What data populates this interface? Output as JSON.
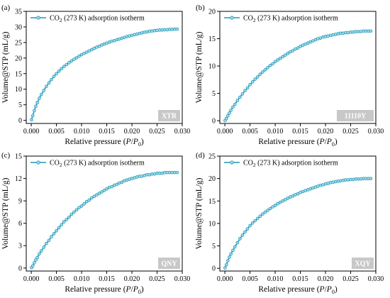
{
  "figure": {
    "series_color": "#1e98b8",
    "marker_fill": "#a9dcea"
  },
  "chart_data": [
    {
      "type": "line",
      "panel_label": "(a)",
      "sample_badge": "XTR",
      "series": [
        {
          "name_main": "CO",
          "name_sub": "2",
          "name_rest": " (273 K) adsorption isotherm",
          "x": [
            5e-05,
            0.0003,
            0.0006,
            0.0009,
            0.0012,
            0.0016,
            0.002,
            0.0025,
            0.003,
            0.0035,
            0.004,
            0.0045,
            0.005,
            0.0055,
            0.006,
            0.0065,
            0.007,
            0.0075,
            0.008,
            0.0085,
            0.009,
            0.0095,
            0.01,
            0.0105,
            0.011,
            0.0115,
            0.012,
            0.0125,
            0.013,
            0.0135,
            0.014,
            0.0145,
            0.015,
            0.0155,
            0.016,
            0.0165,
            0.017,
            0.0175,
            0.018,
            0.0185,
            0.019,
            0.0195,
            0.02,
            0.0205,
            0.021,
            0.0215,
            0.022,
            0.0225,
            0.023,
            0.0235,
            0.024,
            0.0245,
            0.025,
            0.0255,
            0.026,
            0.0265,
            0.027,
            0.0275,
            0.028,
            0.0285,
            0.029
          ],
          "y": [
            0.2,
            1.5,
            3.1,
            4.5,
            5.7,
            7.1,
            8.3,
            9.6,
            10.9,
            12.0,
            13.1,
            14.1,
            15.0,
            15.8,
            16.6,
            17.3,
            17.9,
            18.5,
            19.1,
            19.6,
            20.1,
            20.6,
            21.1,
            21.5,
            21.9,
            22.3,
            22.7,
            23.1,
            23.5,
            23.8,
            24.2,
            24.5,
            24.8,
            25.1,
            25.4,
            25.6,
            25.9,
            26.1,
            26.4,
            26.6,
            26.9,
            27.1,
            27.3,
            27.5,
            27.7,
            27.9,
            28.1,
            28.3,
            28.4,
            28.6,
            28.7,
            28.8,
            28.9,
            29.0,
            29.0,
            29.1,
            29.1,
            29.2,
            29.2,
            29.3,
            29.3
          ]
        }
      ],
      "xlim": [
        -0.001,
        0.03
      ],
      "ylim": [
        -1,
        35
      ],
      "xticks": [
        0.0,
        0.005,
        0.01,
        0.015,
        0.02,
        0.025,
        0.03
      ],
      "xtick_labels": [
        "0.000",
        "0.005",
        "0.010",
        "0.015",
        "0.020",
        "0.025",
        "0.030"
      ],
      "yticks": [
        0,
        5,
        10,
        15,
        20,
        25,
        30,
        35
      ],
      "ytick_labels": [
        "0",
        "5",
        "10",
        "15",
        "20",
        "25",
        "30",
        "35"
      ],
      "ylabel": "Volume@STP (mL/g)",
      "xlabel_main": "Relative pressure (",
      "xlabel_var": "P",
      "xlabel_slash": "/",
      "xlabel_var2": "P",
      "xlabel_sub": "0",
      "xlabel_end": ")",
      "legend": "top-left"
    },
    {
      "type": "line",
      "panel_label": "(b)",
      "sample_badge": "11110Y",
      "series": [
        {
          "name_main": "CO",
          "name_sub": "2",
          "name_rest": " (273 K) adsorption isotherm",
          "x": [
            5e-05,
            0.0003,
            0.0006,
            0.0009,
            0.0012,
            0.0016,
            0.002,
            0.0025,
            0.003,
            0.0035,
            0.004,
            0.0045,
            0.005,
            0.0055,
            0.006,
            0.0065,
            0.007,
            0.0075,
            0.008,
            0.0085,
            0.009,
            0.0095,
            0.01,
            0.0105,
            0.011,
            0.0115,
            0.012,
            0.0125,
            0.013,
            0.0135,
            0.014,
            0.0145,
            0.015,
            0.0155,
            0.016,
            0.0165,
            0.017,
            0.0175,
            0.018,
            0.0185,
            0.019,
            0.0195,
            0.02,
            0.0205,
            0.021,
            0.0215,
            0.022,
            0.0225,
            0.023,
            0.0235,
            0.024,
            0.0245,
            0.025,
            0.0255,
            0.026,
            0.0265,
            0.027,
            0.0275,
            0.028,
            0.0285,
            0.029
          ],
          "y": [
            0.05,
            0.4,
            0.9,
            1.4,
            1.9,
            2.5,
            3.0,
            3.7,
            4.3,
            4.9,
            5.5,
            6.0,
            6.6,
            7.1,
            7.6,
            8.0,
            8.5,
            8.9,
            9.3,
            9.7,
            10.1,
            10.4,
            10.8,
            11.1,
            11.4,
            11.7,
            12.0,
            12.3,
            12.6,
            12.8,
            13.1,
            13.3,
            13.6,
            13.8,
            14.0,
            14.2,
            14.4,
            14.6,
            14.8,
            15.0,
            15.1,
            15.3,
            15.4,
            15.5,
            15.6,
            15.7,
            15.8,
            15.9,
            16.0,
            16.0,
            16.1,
            16.1,
            16.2,
            16.2,
            16.3,
            16.3,
            16.3,
            16.4,
            16.4,
            16.4,
            16.4
          ]
        }
      ],
      "xlim": [
        -0.001,
        0.03
      ],
      "ylim": [
        -0.5,
        20
      ],
      "xticks": [
        0.0,
        0.005,
        0.01,
        0.015,
        0.02,
        0.025,
        0.03
      ],
      "xtick_labels": [
        "0.000",
        "0.005",
        "0.010",
        "0.015",
        "0.020",
        "0.025",
        "0.030"
      ],
      "yticks": [
        0,
        5,
        10,
        15,
        20
      ],
      "ytick_labels": [
        "0",
        "5",
        "10",
        "15",
        "20"
      ],
      "ylabel": "Volume@STP (mL/g)",
      "xlabel_main": "Relative pressure (",
      "xlabel_var": "P",
      "xlabel_slash": "/",
      "xlabel_var2": "P",
      "xlabel_sub": "0",
      "xlabel_end": ")",
      "legend": "top-left"
    },
    {
      "type": "line",
      "panel_label": "(c)",
      "sample_badge": "QNY",
      "series": [
        {
          "name_main": "CO",
          "name_sub": "2",
          "name_rest": " (273 K) adsorption isotherm",
          "x": [
            5e-05,
            0.0003,
            0.0006,
            0.0009,
            0.0012,
            0.0016,
            0.002,
            0.0025,
            0.003,
            0.0035,
            0.004,
            0.0045,
            0.005,
            0.0055,
            0.006,
            0.0065,
            0.007,
            0.0075,
            0.008,
            0.0085,
            0.009,
            0.0095,
            0.01,
            0.0105,
            0.011,
            0.0115,
            0.012,
            0.0125,
            0.013,
            0.0135,
            0.014,
            0.0145,
            0.015,
            0.0155,
            0.016,
            0.0165,
            0.017,
            0.0175,
            0.018,
            0.0185,
            0.019,
            0.0195,
            0.02,
            0.0205,
            0.021,
            0.0215,
            0.022,
            0.0225,
            0.023,
            0.0235,
            0.024,
            0.0245,
            0.025,
            0.0255,
            0.026,
            0.0265,
            0.027,
            0.0275,
            0.028,
            0.0285,
            0.029
          ],
          "y": [
            0.05,
            0.3,
            0.7,
            1.1,
            1.4,
            1.9,
            2.3,
            2.8,
            3.3,
            3.7,
            4.2,
            4.6,
            5.0,
            5.4,
            5.8,
            6.2,
            6.5,
            6.8,
            7.2,
            7.5,
            7.8,
            8.1,
            8.3,
            8.6,
            8.9,
            9.1,
            9.4,
            9.6,
            9.8,
            10.0,
            10.2,
            10.4,
            10.6,
            10.8,
            10.9,
            11.1,
            11.2,
            11.4,
            11.5,
            11.7,
            11.8,
            11.9,
            12.0,
            12.1,
            12.2,
            12.3,
            12.3,
            12.4,
            12.5,
            12.5,
            12.6,
            12.6,
            12.7,
            12.7,
            12.7,
            12.8,
            12.8,
            12.8,
            12.8,
            12.8,
            12.8
          ]
        }
      ],
      "xlim": [
        -0.001,
        0.03
      ],
      "ylim": [
        -0.4,
        15
      ],
      "xticks": [
        0.0,
        0.005,
        0.01,
        0.015,
        0.02,
        0.025,
        0.03
      ],
      "xtick_labels": [
        "0.000",
        "0.005",
        "0.010",
        "0.015",
        "0.020",
        "0.025",
        "0.030"
      ],
      "yticks": [
        0,
        3,
        6,
        9,
        12,
        15
      ],
      "ytick_labels": [
        "0",
        "3",
        "6",
        "9",
        "12",
        "15"
      ],
      "ylabel": "Volume@STP (mL/g)",
      "xlabel_main": "Relative pressure (",
      "xlabel_var": "P",
      "xlabel_slash": "/",
      "xlabel_var2": "P",
      "xlabel_sub": "0",
      "xlabel_end": ")",
      "legend": "top-left"
    },
    {
      "type": "line",
      "panel_label": "(d)",
      "sample_badge": "XQY",
      "series": [
        {
          "name_main": "CO",
          "name_sub": "2",
          "name_rest": " (273 K) adsorption isotherm",
          "x": [
            5e-05,
            0.0003,
            0.0006,
            0.0009,
            0.0012,
            0.0016,
            0.002,
            0.0025,
            0.003,
            0.0035,
            0.004,
            0.0045,
            0.005,
            0.0055,
            0.006,
            0.0065,
            0.007,
            0.0075,
            0.008,
            0.0085,
            0.009,
            0.0095,
            0.01,
            0.0105,
            0.011,
            0.0115,
            0.012,
            0.0125,
            0.013,
            0.0135,
            0.014,
            0.0145,
            0.015,
            0.0155,
            0.016,
            0.0165,
            0.017,
            0.0175,
            0.018,
            0.0185,
            0.019,
            0.0195,
            0.02,
            0.0205,
            0.021,
            0.0215,
            0.022,
            0.0225,
            0.023,
            0.0235,
            0.024,
            0.0245,
            0.025,
            0.0255,
            0.026,
            0.0265,
            0.027,
            0.0275,
            0.028,
            0.0285,
            0.029
          ],
          "y": [
            0.1,
            0.8,
            1.7,
            2.5,
            3.2,
            4.0,
            4.8,
            5.7,
            6.6,
            7.4,
            8.1,
            8.8,
            9.5,
            10.1,
            10.6,
            11.1,
            11.6,
            12.1,
            12.5,
            12.9,
            13.3,
            13.7,
            14.0,
            14.4,
            14.7,
            15.0,
            15.3,
            15.6,
            15.9,
            16.1,
            16.4,
            16.6,
            16.9,
            17.1,
            17.3,
            17.5,
            17.7,
            17.9,
            18.1,
            18.3,
            18.5,
            18.6,
            18.8,
            18.9,
            19.1,
            19.2,
            19.3,
            19.4,
            19.5,
            19.6,
            19.7,
            19.7,
            19.8,
            19.8,
            19.9,
            19.9,
            19.9,
            20.0,
            20.0,
            20.0,
            20.0
          ]
        }
      ],
      "xlim": [
        -0.001,
        0.03
      ],
      "ylim": [
        -0.6,
        25
      ],
      "xticks": [
        0.0,
        0.005,
        0.01,
        0.015,
        0.02,
        0.025,
        0.03
      ],
      "xtick_labels": [
        "0.000",
        "0.005",
        "0.010",
        "0.015",
        "0.020",
        "0.025",
        "0.030"
      ],
      "yticks": [
        0,
        5,
        10,
        15,
        20,
        25
      ],
      "ytick_labels": [
        "0",
        "5",
        "10",
        "15",
        "20",
        "25"
      ],
      "ylabel": "Volume@STP (mL/g)",
      "xlabel_main": "Relative pressure (",
      "xlabel_var": "P",
      "xlabel_slash": "/",
      "xlabel_var2": "P",
      "xlabel_sub": "0",
      "xlabel_end": ")",
      "legend": "top-left"
    }
  ]
}
